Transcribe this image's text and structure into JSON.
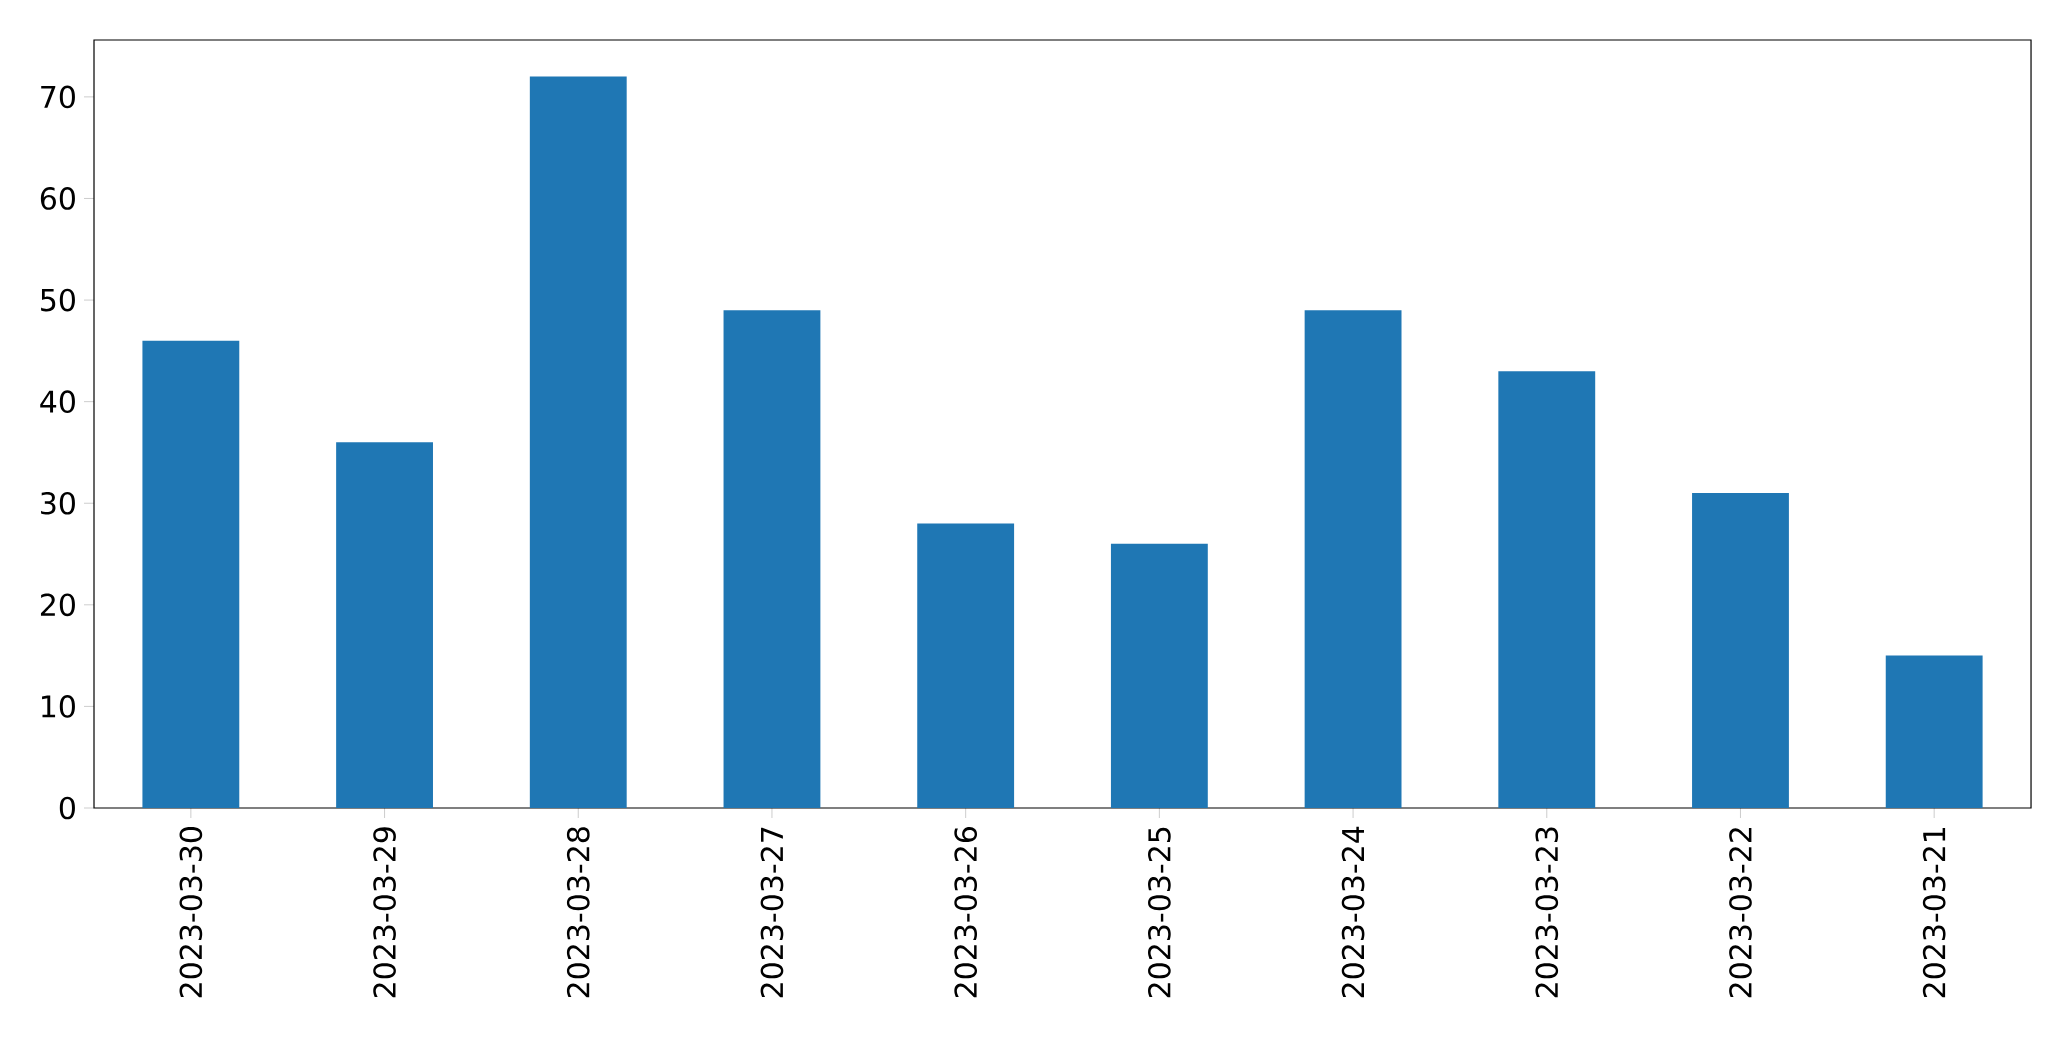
{
  "chart_data": {
    "type": "bar",
    "categories": [
      "2023-03-30",
      "2023-03-29",
      "2023-03-28",
      "2023-03-27",
      "2023-03-26",
      "2023-03-25",
      "2023-03-24",
      "2023-03-23",
      "2023-03-22",
      "2023-03-21"
    ],
    "values": [
      46,
      36,
      72,
      49,
      28,
      26,
      49,
      43,
      31,
      15
    ],
    "color": "#1f77b4",
    "ylim": [
      0,
      75.6
    ],
    "yticks": [
      0,
      10,
      20,
      30,
      40,
      50,
      60,
      70
    ]
  }
}
